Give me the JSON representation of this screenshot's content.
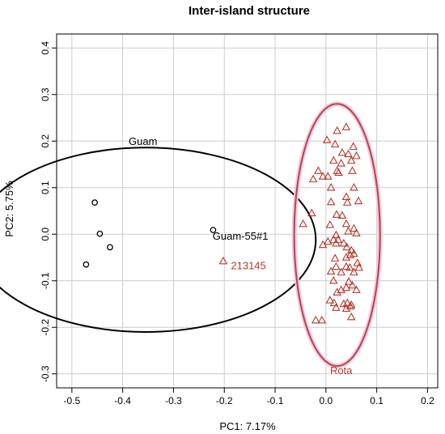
{
  "chart_data": {
    "type": "scatter",
    "title": "Inter-island structure",
    "xlabel": "PC1: 7.17%",
    "ylabel": "PC2: 5.75%",
    "xlim": [
      -0.53,
      0.22
    ],
    "ylim": [
      -0.33,
      0.43
    ],
    "x_ticks": [
      -0.5,
      -0.4,
      -0.3,
      -0.2,
      -0.1,
      0.0,
      0.1,
      0.2
    ],
    "y_ticks": [
      -0.3,
      -0.2,
      -0.1,
      0.0,
      0.1,
      0.2,
      0.3,
      0.4
    ],
    "x_tick_labels": [
      "-0.5",
      "-0.4",
      "-0.3",
      "-0.2",
      "-0.1",
      "0.0",
      "0.1",
      "0.2"
    ],
    "y_tick_labels": [
      "-0.3",
      "-0.2",
      "-0.1",
      "0.0",
      "0.1",
      "0.2",
      "0.3",
      "0.4"
    ],
    "grid": true,
    "colors": {
      "guam": "#000000",
      "rota": "#b5382b",
      "rota_ellipse": "#b04a3a",
      "rota_glow": "#f7c6e8",
      "grid": "#cccccc"
    },
    "series": [
      {
        "name": "Guam",
        "marker": "circle",
        "color": "#000000",
        "points": [
          [
            -0.455,
            0.068
          ],
          [
            -0.445,
            0.001
          ],
          [
            -0.425,
            -0.028
          ],
          [
            -0.472,
            -0.065
          ],
          [
            -0.222,
            0.009
          ]
        ]
      },
      {
        "name": "Rota",
        "marker": "triangle",
        "color": "#b5382b",
        "points": [
          [
            0.04,
            0.23
          ],
          [
            0.022,
            0.222
          ],
          [
            0.002,
            0.202
          ],
          [
            0.018,
            0.193
          ],
          [
            0.054,
            0.188
          ],
          [
            0.032,
            0.175
          ],
          [
            0.044,
            0.172
          ],
          [
            0.06,
            0.168
          ],
          [
            0.015,
            0.158
          ],
          [
            0.05,
            0.158
          ],
          [
            0.03,
            0.152
          ],
          [
            -0.015,
            0.136
          ],
          [
            0.022,
            0.136
          ],
          [
            0.025,
            0.132
          ],
          [
            0.052,
            0.136
          ],
          [
            -0.006,
            0.124
          ],
          [
            0.004,
            0.124
          ],
          [
            -0.025,
            0.118
          ],
          [
            0.01,
            0.1
          ],
          [
            0.055,
            0.1
          ],
          [
            0.04,
            0.08
          ],
          [
            0.042,
            0.068
          ],
          [
            0.064,
            0.071
          ],
          [
            -0.028,
            0.045
          ],
          [
            0.01,
            0.069
          ],
          [
            0.021,
            0.042
          ],
          [
            0.032,
            0.04
          ],
          [
            -0.045,
            0.022
          ],
          [
            0.008,
            0.02
          ],
          [
            0.04,
            0.022
          ],
          [
            0.055,
            0.012
          ],
          [
            0.044,
            0.006
          ],
          [
            0.06,
            0.002
          ],
          [
            0.02,
            -0.002
          ],
          [
            0.024,
            -0.012
          ],
          [
            0.015,
            -0.012
          ],
          [
            0.004,
            -0.016
          ],
          [
            0.02,
            -0.02
          ],
          [
            -0.006,
            -0.023
          ],
          [
            0.035,
            -0.02
          ],
          [
            0.041,
            -0.028
          ],
          [
            0.05,
            -0.035
          ],
          [
            0.055,
            -0.042
          ],
          [
            0.048,
            -0.045
          ],
          [
            0.04,
            -0.05
          ],
          [
            0.018,
            -0.052
          ],
          [
            0.062,
            -0.062
          ],
          [
            0.02,
            -0.07
          ],
          [
            0.04,
            -0.07
          ],
          [
            0.047,
            -0.072
          ],
          [
            0.01,
            -0.08
          ],
          [
            0.03,
            -0.082
          ],
          [
            0.055,
            -0.082
          ],
          [
            0.065,
            -0.072
          ],
          [
            0.015,
            -0.1
          ],
          [
            0.045,
            -0.102
          ],
          [
            0.052,
            -0.11
          ],
          [
            0.04,
            -0.115
          ],
          [
            0.03,
            -0.12
          ],
          [
            0.022,
            -0.125
          ],
          [
            0.06,
            -0.12
          ],
          [
            0.042,
            -0.148
          ],
          [
            0.035,
            -0.15
          ],
          [
            0.05,
            -0.152
          ],
          [
            0.048,
            -0.155
          ],
          [
            0.02,
            -0.158
          ],
          [
            0.016,
            -0.148
          ],
          [
            0.008,
            -0.142
          ],
          [
            0.04,
            -0.16
          ],
          [
            -0.02,
            -0.185
          ],
          [
            -0.008,
            -0.185
          ],
          [
            0.05,
            -0.178
          ],
          [
            -0.202,
            -0.058
          ]
        ]
      }
    ],
    "ellipses": [
      {
        "name": "Guam",
        "label": "Guam",
        "color": "#000000",
        "center": [
          -0.355,
          -0.012
        ],
        "radii": [
          0.335,
          0.198
        ]
      },
      {
        "name": "Rota",
        "label": "Rota",
        "color": "#b04a3a",
        "center": [
          0.022,
          -0.0015
        ],
        "radii": [
          0.0845,
          0.2815
        ]
      }
    ],
    "annotations": [
      {
        "text": "Guam",
        "x": -0.36,
        "y": 0.192,
        "color": "#000000",
        "anchor": "middle"
      },
      {
        "text": "Guam-55#1",
        "x": -0.223,
        "y": -0.012,
        "color": "#000000",
        "anchor": "start"
      },
      {
        "text": "213145",
        "x": -0.187,
        "y": -0.075,
        "color": "#b5382b",
        "anchor": "start"
      },
      {
        "text": "Rota",
        "x": 0.03,
        "y": -0.3,
        "color": "#b5382b",
        "anchor": "middle"
      }
    ]
  }
}
